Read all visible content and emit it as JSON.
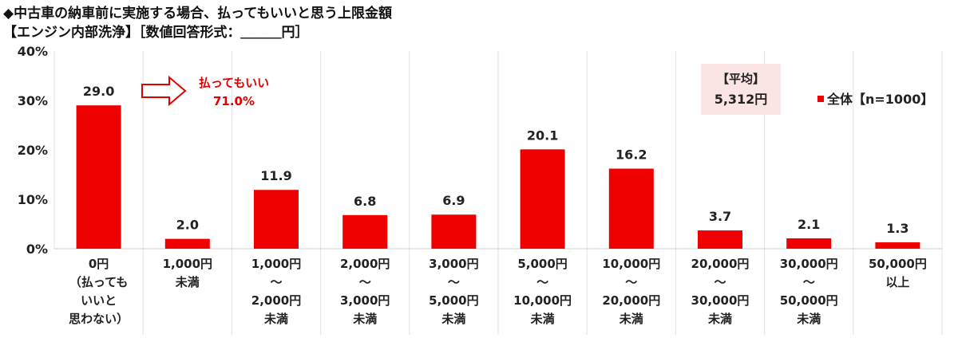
{
  "title": "◆中古車の納車前に実施する場合、払ってもいいと思う上限金額",
  "subtitle": "【エンジン内部洗浄】［数値回答形式：＿＿＿円］",
  "colors": {
    "bar": "#ee0000",
    "annotation": "#e00000",
    "average_box": "#fbe4e4"
  },
  "chart_data": {
    "type": "bar",
    "categories": [
      [
        "0円",
        "（払っても",
        "いいと",
        "思わない）"
      ],
      [
        "1,000円",
        "未満"
      ],
      [
        "1,000円",
        "～",
        "2,000円",
        "未満"
      ],
      [
        "2,000円",
        "～",
        "3,000円",
        "未満"
      ],
      [
        "3,000円",
        "～",
        "5,000円",
        "未満"
      ],
      [
        "5,000円",
        "～",
        "10,000円",
        "未満"
      ],
      [
        "10,000円",
        "～",
        "20,000円",
        "未満"
      ],
      [
        "20,000円",
        "～",
        "30,000円",
        "未満"
      ],
      [
        "30,000円",
        "～",
        "50,000円",
        "未満"
      ],
      [
        "50,000円",
        "以上"
      ]
    ],
    "series": [
      {
        "name": "全体【n=1000】",
        "values": [
          29.0,
          2.0,
          11.9,
          6.8,
          6.9,
          20.1,
          16.2,
          3.7,
          2.1,
          1.3
        ]
      }
    ],
    "data_labels": [
      "29.0",
      "2.0",
      "11.9",
      "6.8",
      "6.9",
      "20.1",
      "16.2",
      "3.7",
      "2.1",
      "1.3"
    ],
    "ylim": [
      0,
      40
    ],
    "yticks": [
      "0%",
      "10%",
      "20%",
      "30%",
      "40%"
    ],
    "grid": "vertical category separators",
    "legend": {
      "label": "全体【n=1000】",
      "placement": "top-right"
    },
    "annotations": {
      "pay_label": "払ってもいい",
      "pay_value": "71.0%",
      "average_label": "【平均】",
      "average_value": "5,312円"
    }
  }
}
